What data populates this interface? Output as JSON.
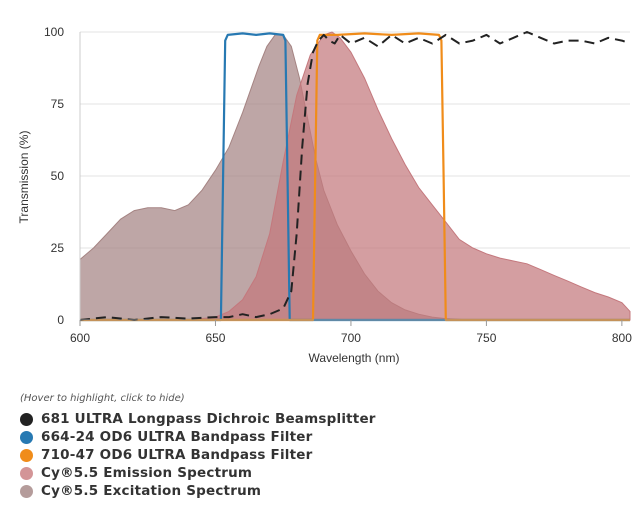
{
  "chart_data": {
    "type": "area",
    "title": "",
    "xlabel": "Wavelength (nm)",
    "ylabel": "Transmission (%)",
    "xlim": [
      600,
      803
    ],
    "ylim": [
      0,
      100
    ],
    "x_ticks": [
      600,
      650,
      700,
      750,
      800
    ],
    "y_ticks": [
      0,
      25,
      50,
      75,
      100
    ],
    "grid": "horizontal",
    "series": [
      {
        "name": "Cy®5.5 Excitation Spectrum",
        "style": "filled-area",
        "color": "#a58483",
        "x": [
          600,
          605,
          610,
          615,
          620,
          625,
          630,
          635,
          640,
          645,
          650,
          655,
          660,
          663,
          666,
          669,
          672,
          675,
          678,
          681,
          684,
          687,
          690,
          695,
          700,
          705,
          710,
          715,
          720,
          725,
          730,
          735,
          740,
          745,
          750
        ],
        "y": [
          21,
          25,
          30,
          35,
          38,
          39,
          39,
          38,
          40,
          45,
          52,
          60,
          72,
          80,
          88,
          95,
          99,
          99,
          95,
          84,
          70,
          56,
          45,
          33,
          24,
          16,
          10,
          6,
          3.5,
          2,
          1,
          0.5,
          0.2,
          0,
          0
        ]
      },
      {
        "name": "Cy®5.5 Emission Spectrum",
        "style": "filled-area",
        "color": "#c4787d",
        "x": [
          640,
          650,
          655,
          660,
          665,
          670,
          675,
          680,
          685,
          690,
          693,
          696,
          700,
          705,
          710,
          715,
          720,
          725,
          730,
          735,
          740,
          745,
          750,
          755,
          760,
          765,
          770,
          775,
          780,
          785,
          790,
          795,
          800,
          803
        ],
        "y": [
          0,
          1,
          3,
          7,
          15,
          30,
          55,
          78,
          92,
          99,
          100,
          98,
          93,
          84,
          73,
          63,
          54,
          46,
          40,
          34,
          28,
          25,
          23,
          21.5,
          20.5,
          19.5,
          17.5,
          15.5,
          13.5,
          11.5,
          9.5,
          8,
          6,
          3
        ]
      },
      {
        "name": "664-24 OD6 ULTRA Bandpass Filter",
        "style": "line",
        "color": "#2779b2",
        "x": [
          600,
          651,
          652,
          652.8,
          653.6,
          654.5,
          660,
          665,
          670,
          675,
          675.8,
          676.6,
          677.4,
          680,
          803
        ],
        "y": [
          0,
          0,
          0,
          50,
          97,
          99,
          99.5,
          99,
          99.5,
          99,
          97,
          50,
          0,
          0,
          0
        ]
      },
      {
        "name": "710-47 OD6 ULTRA Bandpass Filter",
        "style": "line",
        "color": "#f08c1a",
        "x": [
          600,
          685,
          686,
          686.8,
          687.6,
          688.5,
          695,
          705,
          715,
          725,
          732.5,
          733.4,
          734.2,
          735,
          740,
          803
        ],
        "y": [
          0,
          0,
          0,
          50,
          97,
          99,
          99,
          99.5,
          99,
          99.5,
          99,
          97,
          50,
          0,
          0,
          0
        ]
      },
      {
        "name": "681 ULTRA Longpass Dichroic Beamsplitter",
        "style": "dashed-line",
        "color": "#222222",
        "x": [
          600,
          610,
          620,
          630,
          640,
          650,
          655,
          660,
          665,
          670,
          675,
          678,
          680,
          682,
          684,
          686,
          688,
          690,
          692,
          694,
          696,
          700,
          705,
          710,
          715,
          720,
          725,
          730,
          735,
          740,
          745,
          750,
          755,
          760,
          765,
          770,
          775,
          780,
          785,
          790,
          795,
          800,
          803
        ],
        "y": [
          0,
          1,
          0,
          1,
          0.5,
          1,
          1,
          2,
          1,
          2,
          4,
          10,
          30,
          60,
          82,
          93,
          97,
          99,
          97,
          96,
          99,
          96,
          98,
          95,
          99,
          96,
          98,
          96,
          99,
          96,
          97,
          99,
          96,
          98,
          100,
          98,
          96,
          97,
          97,
          96,
          98,
          97,
          96
        ]
      }
    ],
    "legend_hint": "(Hover to highlight, click to hide)",
    "legend": [
      {
        "label": "681 ULTRA Longpass Dichroic Beamsplitter",
        "color": "#222222"
      },
      {
        "label": "664-24 OD6 ULTRA Bandpass Filter",
        "color": "#2779b2"
      },
      {
        "label": "710-47 OD6 ULTRA Bandpass Filter",
        "color": "#f08c1a"
      },
      {
        "label": "Cy®5.5 Emission Spectrum",
        "color": "#d39597"
      },
      {
        "label": "Cy®5.5 Excitation Spectrum",
        "color": "#b59c9b"
      }
    ]
  }
}
